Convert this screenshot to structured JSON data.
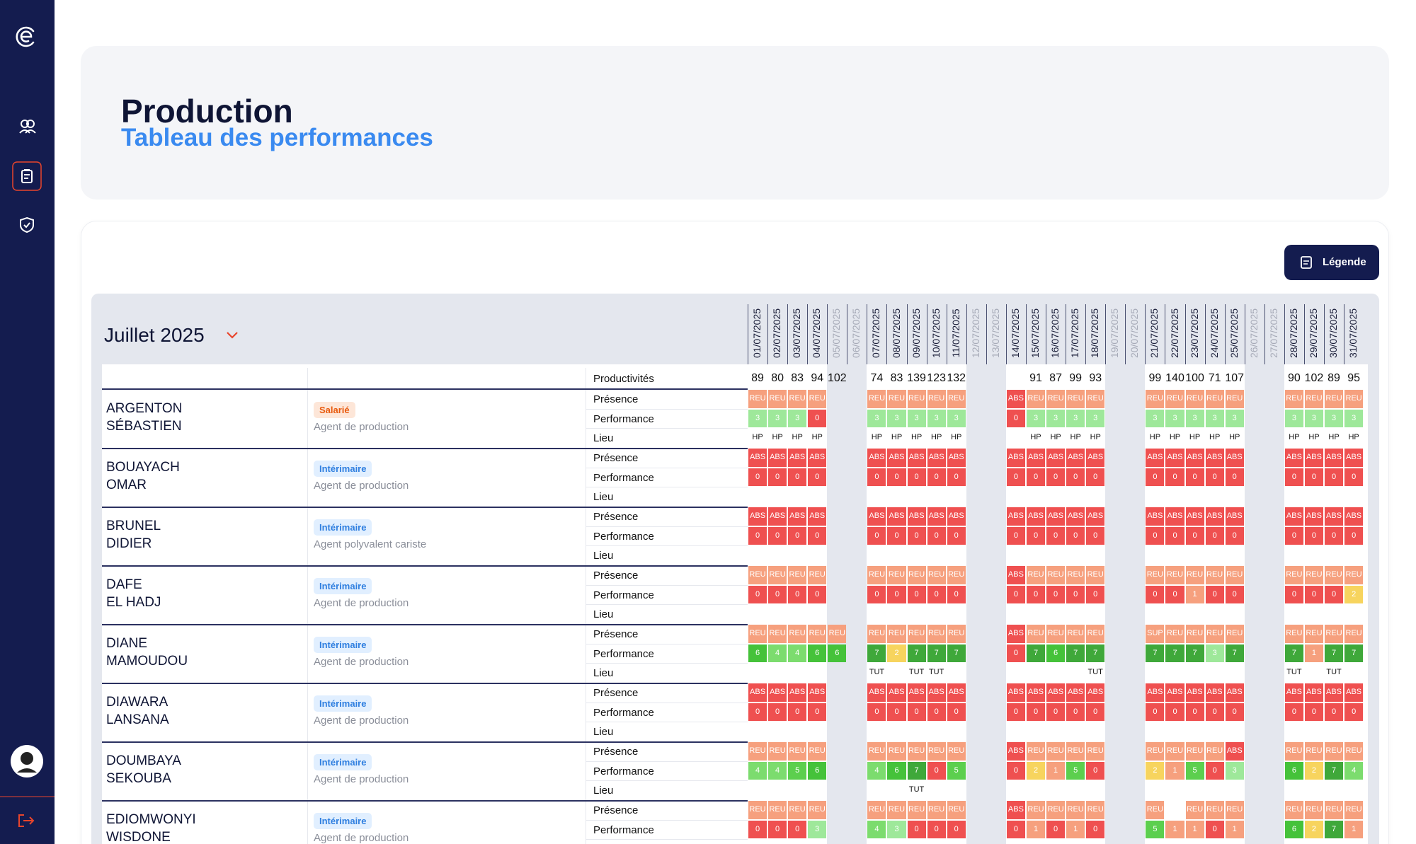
{
  "header": {
    "title": "Production",
    "subtitle": "Tableau des performances"
  },
  "legend_button": "Légende",
  "table": {
    "month": "Juillet 2025",
    "dates": [
      "01/07/2025",
      "02/07/2025",
      "03/07/2025",
      "04/07/2025",
      "05/07/2025",
      "06/07/2025",
      "07/07/2025",
      "08/07/2025",
      "09/07/2025",
      "10/07/2025",
      "11/07/2025",
      "12/07/2025",
      "13/07/2025",
      "14/07/2025",
      "15/07/2025",
      "16/07/2025",
      "17/07/2025",
      "18/07/2025",
      "19/07/2025",
      "20/07/2025",
      "21/07/2025",
      "22/07/2025",
      "23/07/2025",
      "24/07/2025",
      "25/07/2025",
      "26/07/2025",
      "27/07/2025",
      "28/07/2025",
      "29/07/2025",
      "30/07/2025",
      "31/07/2025"
    ],
    "productivity_label": "Productivités",
    "productivities": [
      89,
      80,
      83,
      94,
      102,
      null,
      74,
      83,
      139,
      123,
      132,
      null,
      null,
      null,
      91,
      87,
      99,
      93,
      null,
      null,
      99,
      140,
      100,
      71,
      107,
      null,
      null,
      90,
      102,
      89,
      95
    ],
    "row_labels": [
      "Présence",
      "Performance",
      "Lieu"
    ],
    "presence_colors": {
      "REU": "#f6a07e",
      "ABS": "#ef5050",
      "SUP": "#f6a07e"
    },
    "performance_colors": {
      "0": "#ef5050",
      "1": "#f6a07e",
      "2": "#f7d45e",
      "3": "#9ee89a",
      "4": "#7cdc6e",
      "5": "#5ccf4e",
      "6": "#45c23a",
      "7": "#3fa83a"
    },
    "contract_colors": {
      "Salarié": {
        "bg": "#fde6d8",
        "fg": "#e8590c"
      },
      "Intérimaire": {
        "bg": "#e1efff",
        "fg": "#2f7fe0"
      }
    },
    "employees": [
      {
        "last_name": "ARGENTON",
        "first_name": "SÉBASTIEN",
        "contract": "Salarié",
        "role": "Agent de production",
        "presence": [
          "REU",
          "REU",
          "REU",
          "REU",
          null,
          null,
          "REU",
          "REU",
          "REU",
          "REU",
          "REU",
          null,
          null,
          "ABS",
          "REU",
          "REU",
          "REU",
          "REU",
          null,
          null,
          "REU",
          "REU",
          "REU",
          "REU",
          "REU",
          null,
          null,
          "REU",
          "REU",
          "REU",
          "REU"
        ],
        "performance": [
          3,
          3,
          3,
          0,
          null,
          null,
          3,
          3,
          3,
          3,
          3,
          null,
          null,
          0,
          3,
          3,
          3,
          3,
          null,
          null,
          3,
          3,
          3,
          3,
          3,
          null,
          null,
          3,
          3,
          3,
          3
        ],
        "lieu": [
          "HP",
          "HP",
          "HP",
          "HP",
          null,
          null,
          "HP",
          "HP",
          "HP",
          "HP",
          "HP",
          null,
          null,
          null,
          "HP",
          "HP",
          "HP",
          "HP",
          null,
          null,
          "HP",
          "HP",
          "HP",
          "HP",
          "HP",
          null,
          null,
          "HP",
          "HP",
          "HP",
          "HP"
        ]
      },
      {
        "last_name": "BOUAYACH",
        "first_name": "OMAR",
        "contract": "Intérimaire",
        "role": "Agent de production",
        "presence": [
          "ABS",
          "ABS",
          "ABS",
          "ABS",
          null,
          null,
          "ABS",
          "ABS",
          "ABS",
          "ABS",
          "ABS",
          null,
          null,
          "ABS",
          "ABS",
          "ABS",
          "ABS",
          "ABS",
          null,
          null,
          "ABS",
          "ABS",
          "ABS",
          "ABS",
          "ABS",
          null,
          null,
          "ABS",
          "ABS",
          "ABS",
          "ABS"
        ],
        "performance": [
          0,
          0,
          0,
          0,
          null,
          null,
          0,
          0,
          0,
          0,
          0,
          null,
          null,
          0,
          0,
          0,
          0,
          0,
          null,
          null,
          0,
          0,
          0,
          0,
          0,
          null,
          null,
          0,
          0,
          0,
          0
        ],
        "lieu": [
          null,
          null,
          null,
          null,
          null,
          null,
          null,
          null,
          null,
          null,
          null,
          null,
          null,
          null,
          null,
          null,
          null,
          null,
          null,
          null,
          null,
          null,
          null,
          null,
          null,
          null,
          null,
          null,
          null,
          null,
          null
        ]
      },
      {
        "last_name": "BRUNEL",
        "first_name": "DIDIER",
        "contract": "Intérimaire",
        "role": "Agent polyvalent cariste",
        "presence": [
          "ABS",
          "ABS",
          "ABS",
          "ABS",
          null,
          null,
          "ABS",
          "ABS",
          "ABS",
          "ABS",
          "ABS",
          null,
          null,
          "ABS",
          "ABS",
          "ABS",
          "ABS",
          "ABS",
          null,
          null,
          "ABS",
          "ABS",
          "ABS",
          "ABS",
          "ABS",
          null,
          null,
          "ABS",
          "ABS",
          "ABS",
          "ABS"
        ],
        "performance": [
          0,
          0,
          0,
          0,
          null,
          null,
          0,
          0,
          0,
          0,
          0,
          null,
          null,
          0,
          0,
          0,
          0,
          0,
          null,
          null,
          0,
          0,
          0,
          0,
          0,
          null,
          null,
          0,
          0,
          0,
          0
        ],
        "lieu": [
          null,
          null,
          null,
          null,
          null,
          null,
          null,
          null,
          null,
          null,
          null,
          null,
          null,
          null,
          null,
          null,
          null,
          null,
          null,
          null,
          null,
          null,
          null,
          null,
          null,
          null,
          null,
          null,
          null,
          null,
          null
        ]
      },
      {
        "last_name": "DAFE",
        "first_name": "EL HADJ",
        "contract": "Intérimaire",
        "role": "Agent de production",
        "presence": [
          "REU",
          "REU",
          "REU",
          "REU",
          null,
          null,
          "REU",
          "REU",
          "REU",
          "REU",
          "REU",
          null,
          null,
          "ABS",
          "REU",
          "REU",
          "REU",
          "REU",
          null,
          null,
          "REU",
          "REU",
          "REU",
          "REU",
          "REU",
          null,
          null,
          "REU",
          "REU",
          "REU",
          "REU"
        ],
        "performance": [
          0,
          0,
          0,
          0,
          null,
          null,
          0,
          0,
          0,
          0,
          0,
          null,
          null,
          0,
          0,
          0,
          0,
          0,
          null,
          null,
          0,
          0,
          1,
          0,
          0,
          null,
          null,
          0,
          0,
          0,
          2
        ],
        "lieu": [
          null,
          null,
          null,
          null,
          null,
          null,
          null,
          null,
          null,
          null,
          null,
          null,
          null,
          null,
          null,
          null,
          null,
          null,
          null,
          null,
          null,
          null,
          null,
          null,
          null,
          null,
          null,
          null,
          null,
          null,
          null
        ]
      },
      {
        "last_name": "DIANE",
        "first_name": "MAMOUDOU",
        "contract": "Intérimaire",
        "role": "Agent de production",
        "presence": [
          "REU",
          "REU",
          "REU",
          "REU",
          "REU",
          null,
          "REU",
          "REU",
          "REU",
          "REU",
          "REU",
          null,
          null,
          "ABS",
          "REU",
          "REU",
          "REU",
          "REU",
          null,
          null,
          "SUP",
          "REU",
          "REU",
          "REU",
          "REU",
          null,
          null,
          "REU",
          "REU",
          "REU",
          "REU"
        ],
        "performance": [
          6,
          4,
          4,
          6,
          6,
          null,
          7,
          2,
          7,
          7,
          7,
          null,
          null,
          0,
          7,
          6,
          7,
          7,
          null,
          null,
          7,
          7,
          7,
          3,
          7,
          null,
          null,
          7,
          1,
          7,
          7
        ],
        "lieu": [
          null,
          null,
          null,
          null,
          null,
          null,
          "TUT",
          null,
          "TUT",
          "TUT",
          null,
          null,
          null,
          null,
          null,
          null,
          null,
          "TUT",
          null,
          null,
          null,
          null,
          null,
          null,
          null,
          null,
          null,
          "TUT",
          null,
          "TUT",
          null
        ]
      },
      {
        "last_name": "DIAWARA",
        "first_name": "LANSANA",
        "contract": "Intérimaire",
        "role": "Agent de production",
        "presence": [
          "ABS",
          "ABS",
          "ABS",
          "ABS",
          null,
          null,
          "ABS",
          "ABS",
          "ABS",
          "ABS",
          "ABS",
          null,
          null,
          "ABS",
          "ABS",
          "ABS",
          "ABS",
          "ABS",
          null,
          null,
          "ABS",
          "ABS",
          "ABS",
          "ABS",
          "ABS",
          null,
          null,
          "ABS",
          "ABS",
          "ABS",
          "ABS"
        ],
        "performance": [
          0,
          0,
          0,
          0,
          null,
          null,
          0,
          0,
          0,
          0,
          0,
          null,
          null,
          0,
          0,
          0,
          0,
          0,
          null,
          null,
          0,
          0,
          0,
          0,
          0,
          null,
          null,
          0,
          0,
          0,
          0
        ],
        "lieu": [
          null,
          null,
          null,
          null,
          null,
          null,
          null,
          null,
          null,
          null,
          null,
          null,
          null,
          null,
          null,
          null,
          null,
          null,
          null,
          null,
          null,
          null,
          null,
          null,
          null,
          null,
          null,
          null,
          null,
          null,
          null
        ]
      },
      {
        "last_name": "DOUMBAYA",
        "first_name": "SEKOUBA",
        "contract": "Intérimaire",
        "role": "Agent de production",
        "presence": [
          "REU",
          "REU",
          "REU",
          "REU",
          null,
          null,
          "REU",
          "REU",
          "REU",
          "REU",
          "REU",
          null,
          null,
          "ABS",
          "REU",
          "REU",
          "REU",
          "REU",
          null,
          null,
          "REU",
          "REU",
          "REU",
          "REU",
          "ABS",
          null,
          null,
          "REU",
          "REU",
          "REU",
          "REU"
        ],
        "performance": [
          4,
          4,
          5,
          6,
          null,
          null,
          4,
          6,
          7,
          0,
          5,
          null,
          null,
          0,
          2,
          1,
          5,
          0,
          null,
          null,
          2,
          1,
          5,
          0,
          3,
          null,
          null,
          6,
          2,
          7,
          4
        ],
        "lieu": [
          null,
          null,
          null,
          null,
          null,
          null,
          null,
          null,
          "TUT",
          null,
          null,
          null,
          null,
          null,
          null,
          null,
          null,
          null,
          null,
          null,
          null,
          null,
          null,
          null,
          null,
          null,
          null,
          null,
          null,
          null,
          null
        ]
      },
      {
        "last_name": "EDIOMWONYI",
        "first_name": "WISDONE",
        "contract": "Intérimaire",
        "role": "Agent de production",
        "presence": [
          "REU",
          "REU",
          "REU",
          "REU",
          null,
          null,
          "REU",
          "REU",
          "REU",
          "REU",
          "REU",
          null,
          null,
          "ABS",
          "REU",
          "REU",
          "REU",
          "REU",
          null,
          null,
          "REU",
          null,
          "REU",
          "REU",
          "REU",
          null,
          null,
          "REU",
          "REU",
          "REU",
          "REU"
        ],
        "performance": [
          0,
          0,
          0,
          3,
          null,
          null,
          4,
          3,
          0,
          0,
          0,
          null,
          null,
          0,
          1,
          0,
          1,
          0,
          null,
          null,
          5,
          1,
          1,
          0,
          1,
          null,
          null,
          6,
          2,
          7,
          1
        ],
        "lieu": [
          null,
          null,
          null,
          null,
          null,
          null,
          null,
          null,
          null,
          null,
          null,
          null,
          null,
          null,
          null,
          null,
          null,
          null,
          null,
          null,
          null,
          null,
          null,
          null,
          null,
          null,
          null,
          null,
          null,
          null,
          null
        ]
      }
    ]
  }
}
